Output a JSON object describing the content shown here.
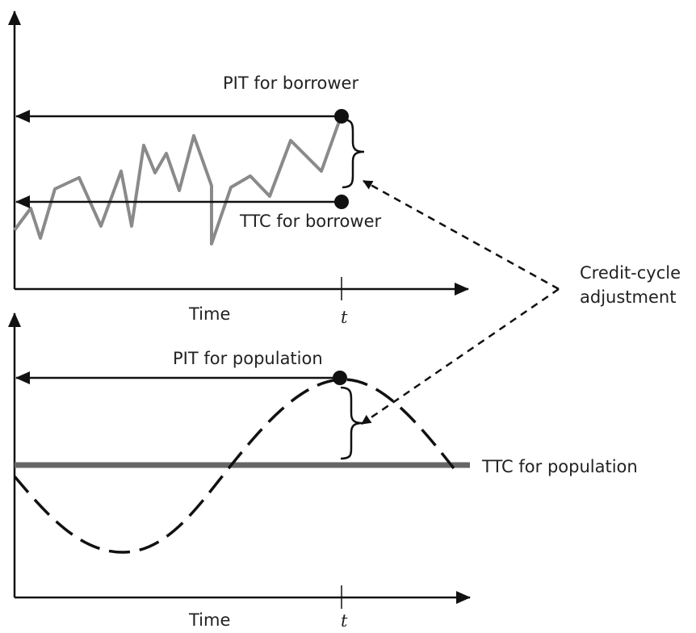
{
  "colors": {
    "ink": "#111111",
    "borrower_series": "#8a8a8a",
    "ttc_population_line": "#666666",
    "text": "#222222"
  },
  "labels": {
    "pit_borrower": "PIT for borrower",
    "ttc_borrower": "TTC for borrower",
    "credit_cycle_line1": "Credit-cycle",
    "credit_cycle_line2": "adjustment",
    "pit_population": "PIT for population",
    "ttc_population": "TTC  for population",
    "time_top": "Time",
    "t_top": "t",
    "time_bottom": "Time",
    "t_bottom": "t"
  },
  "icons": {
    "arrowhead": "arrowhead",
    "point_marker": "dot",
    "brace": "curly-brace-right"
  }
}
